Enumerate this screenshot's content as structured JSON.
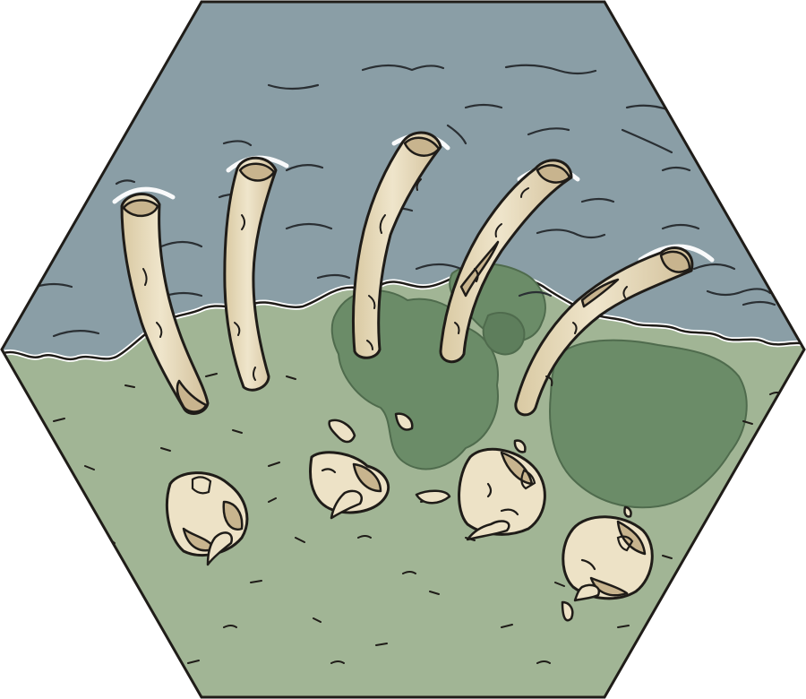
{
  "tile": {
    "terrain": "shore-ribcage",
    "palette": {
      "water": "#8a9ea6",
      "grass": "#a1b595",
      "grass_dark": "#6b8c68",
      "bone": "#ede2c6",
      "bone_shade": "#c8b48e",
      "outline": "#1f1c18",
      "foam": "#ffffff"
    },
    "icons": {
      "ribs": "rib-bone-icon",
      "skull": "skull-fragment-icon",
      "shard": "bone-shard-icon"
    }
  }
}
